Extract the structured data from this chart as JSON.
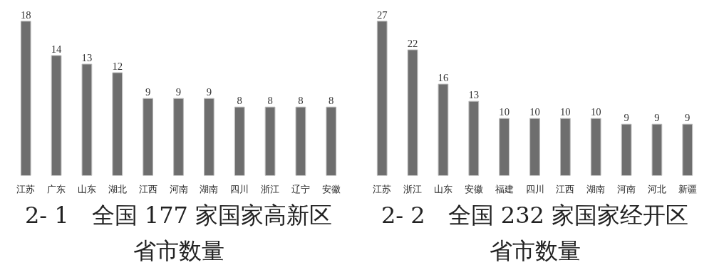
{
  "chart_data": [
    {
      "type": "bar",
      "title": "2- 1　全国 177 家国家高新区省市数量",
      "categories": [
        "江苏",
        "广东",
        "山东",
        "湖北",
        "江西",
        "河南",
        "湖南",
        "四川",
        "浙江",
        "辽宁",
        "安徽"
      ],
      "values": [
        18,
        14,
        13,
        12,
        9,
        9,
        9,
        8,
        8,
        8,
        8
      ],
      "color": "#6e6e6e",
      "data_labels": true,
      "grid": false,
      "tick_labels": "x"
    },
    {
      "type": "bar",
      "title": "2- 2　全国 232 家国家经开区省市数量",
      "categories": [
        "江苏",
        "浙江",
        "山东",
        "安徽",
        "福建",
        "四川",
        "江西",
        "湖南",
        "河南",
        "河北",
        "新疆"
      ],
      "values": [
        27,
        22,
        16,
        13,
        10,
        10,
        10,
        10,
        9,
        9,
        9
      ],
      "color": "#6e6e6e",
      "data_labels": true,
      "grid": false,
      "tick_labels": "x"
    }
  ]
}
